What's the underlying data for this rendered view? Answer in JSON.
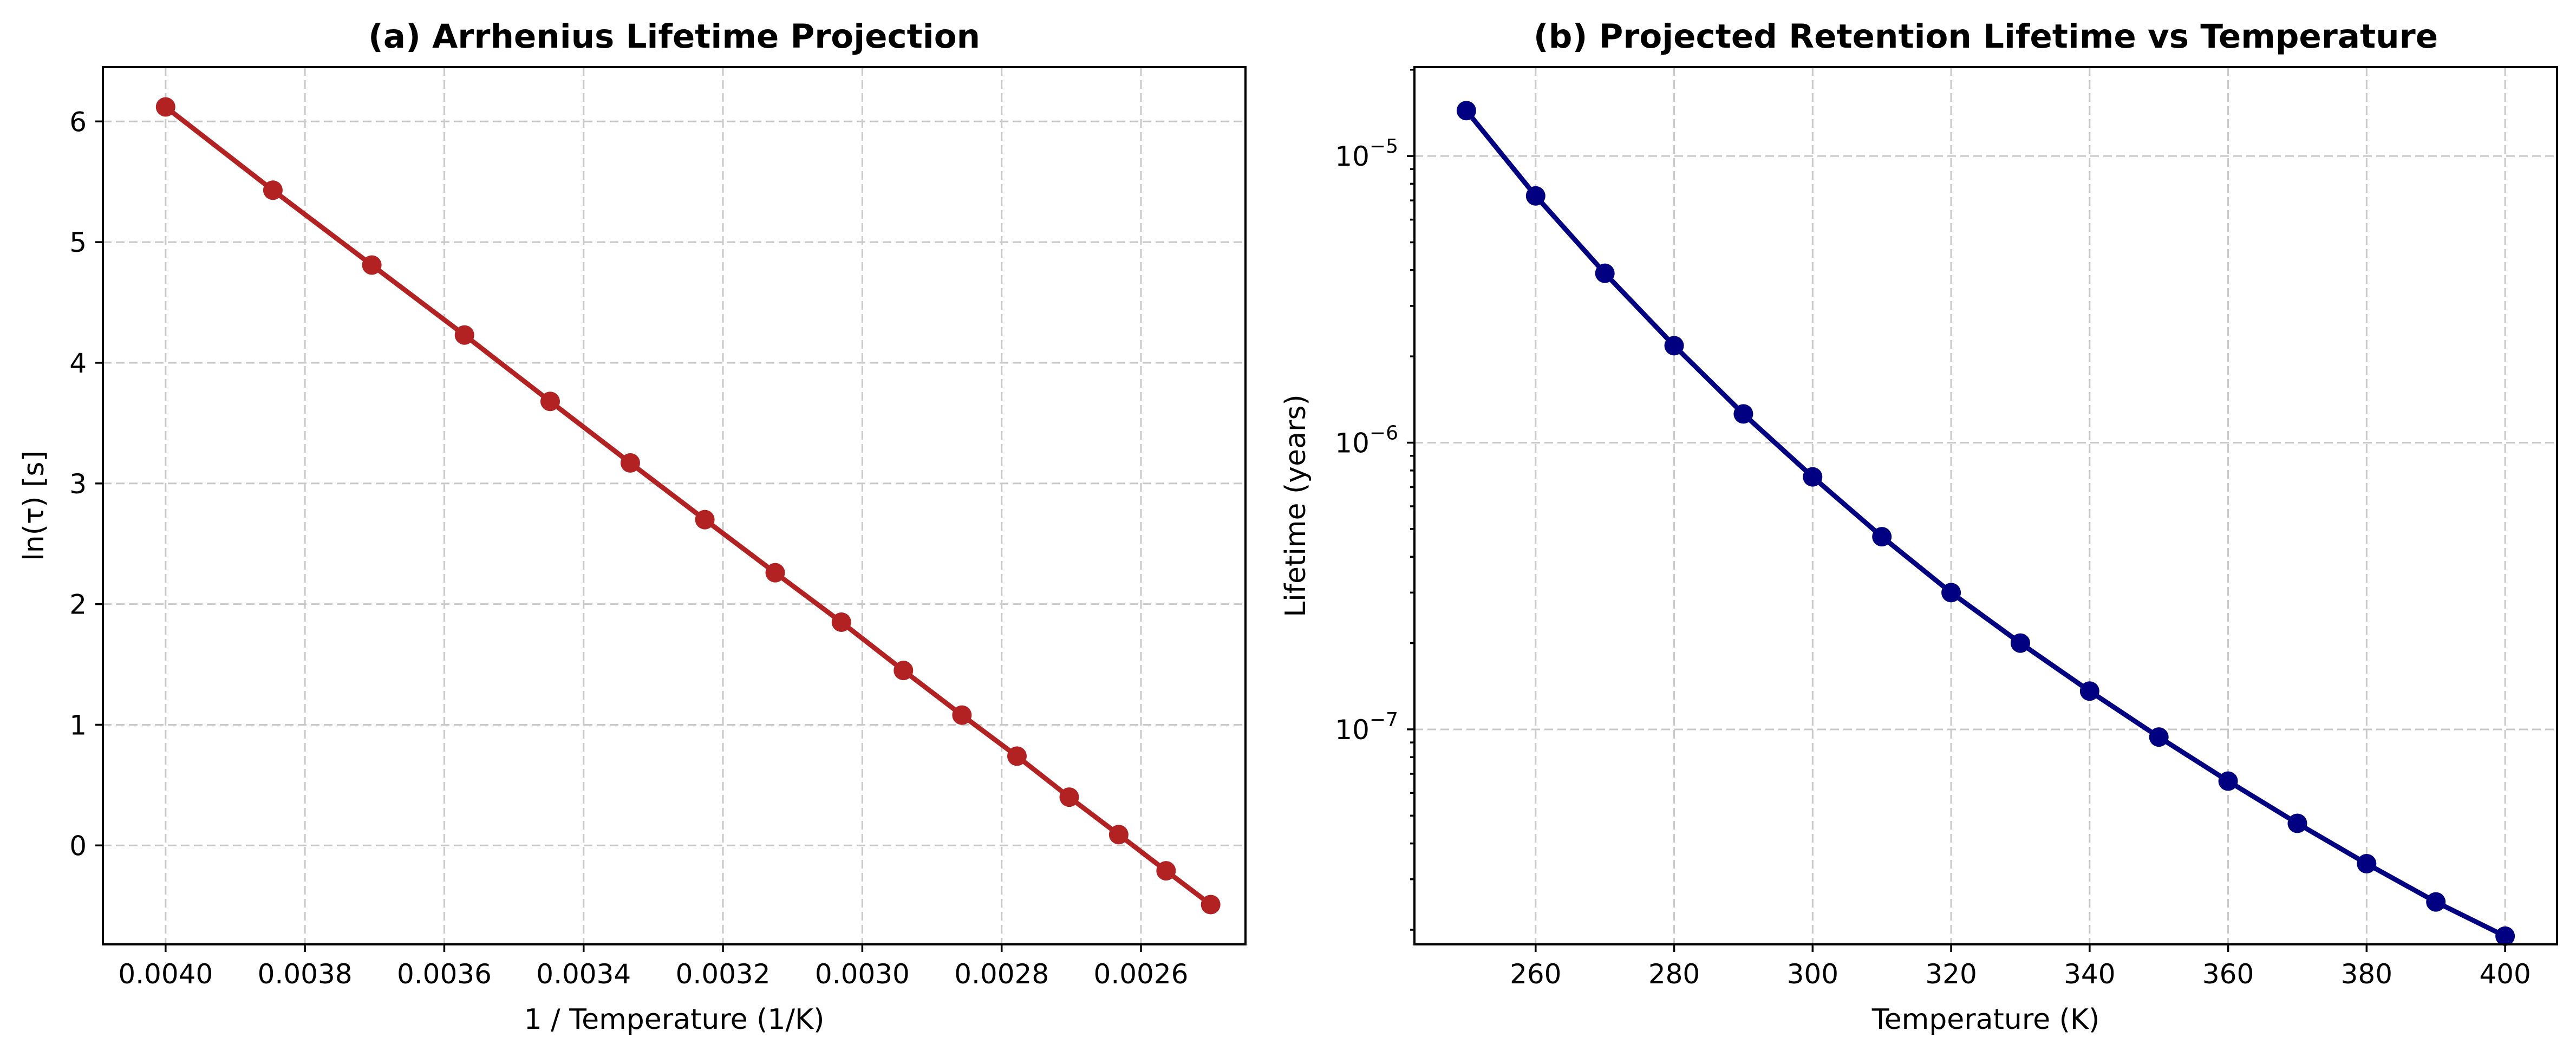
{
  "chart_data": [
    {
      "type": "line",
      "title": "(a) Arrhenius Lifetime Projection",
      "xlabel": "1 / Temperature (1/K)",
      "ylabel": "ln(τ) [s]",
      "x_inverted": true,
      "xlim": [
        0.00409,
        0.00245
      ],
      "ylim": [
        -0.82,
        6.45
      ],
      "x_ticks": [
        "0.0040",
        "0.0038",
        "0.0036",
        "0.0034",
        "0.0032",
        "0.0030",
        "0.0028",
        "0.0026"
      ],
      "y_ticks": [
        "0",
        "1",
        "2",
        "3",
        "4",
        "5",
        "6"
      ],
      "grid": true,
      "color": "#b22222",
      "series": [
        {
          "x": [
            0.004,
            0.003846,
            0.003704,
            0.003571,
            0.003448,
            0.003333,
            0.003226,
            0.003125,
            0.00303,
            0.002941,
            0.002857,
            0.002778,
            0.002703,
            0.002632,
            0.002564,
            0.0025
          ],
          "y": [
            6.12,
            5.43,
            4.81,
            4.23,
            3.68,
            3.17,
            2.7,
            2.26,
            1.85,
            1.45,
            1.08,
            0.74,
            0.4,
            0.09,
            -0.21,
            -0.49
          ]
        }
      ]
    },
    {
      "type": "line",
      "title": "(b) Projected Retention Lifetime vs Temperature",
      "xlabel": "Temperature (K)",
      "ylabel": "Lifetime (years)",
      "yscale": "log",
      "xlim": [
        242.5,
        407.5
      ],
      "ylim_log10": [
        -7.75,
        -4.69
      ],
      "x_ticks": [
        "260",
        "280",
        "300",
        "320",
        "340",
        "360",
        "380",
        "400"
      ],
      "y_ticks": [
        {
          "base": "10",
          "exp": "−5",
          "value": -5
        },
        {
          "base": "10",
          "exp": "−6",
          "value": -6
        },
        {
          "base": "10",
          "exp": "−7",
          "value": -7
        }
      ],
      "grid": true,
      "color": "#000080",
      "series": [
        {
          "x": [
            250,
            260,
            270,
            280,
            290,
            300,
            310,
            320,
            330,
            340,
            350,
            360,
            370,
            380,
            390,
            400
          ],
          "y": [
            1.44e-05,
            7.26e-06,
            3.9e-06,
            2.18e-06,
            1.26e-06,
            7.6e-07,
            4.7e-07,
            3e-07,
            2e-07,
            1.36e-07,
            9.4e-08,
            6.6e-08,
            4.7e-08,
            3.4e-08,
            2.5e-08,
            1.9e-08
          ]
        }
      ]
    }
  ]
}
